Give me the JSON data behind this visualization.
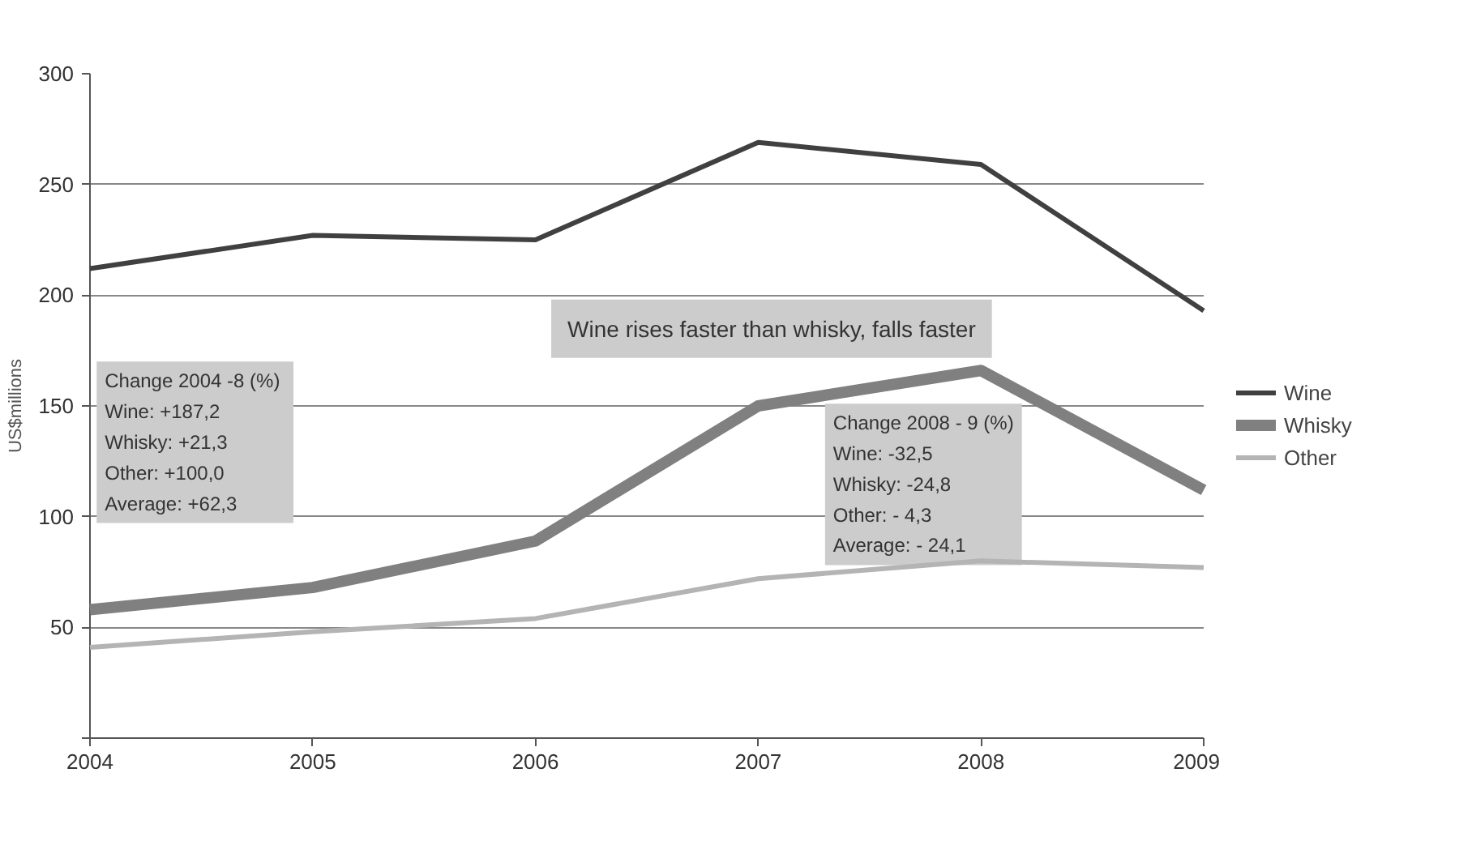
{
  "chart_data": {
    "type": "line",
    "ylabel": "US$millions",
    "x": [
      2004,
      2005,
      2006,
      2007,
      2008,
      2009
    ],
    "xlim": [
      2004,
      2009
    ],
    "xticks": [
      2004,
      2005,
      2006,
      2007,
      2008,
      2009
    ],
    "ylim": [
      0,
      300
    ],
    "yticks": [
      {
        "value": 0,
        "label": null
      },
      50,
      100,
      150,
      200,
      250,
      300
    ],
    "grid": "y",
    "legend": "right",
    "marker": "none",
    "line_style": "solid",
    "series": [
      {
        "name": "Wine",
        "color": "#404040",
        "values": [
          212,
          227,
          225,
          269,
          259,
          193
        ]
      },
      {
        "name": "Whisky",
        "color": "#808080",
        "values": [
          58,
          68,
          89,
          150,
          166,
          112
        ]
      },
      {
        "name": "Other",
        "color": "#b4b4b4",
        "values": [
          41,
          48,
          54,
          72,
          80,
          77
        ]
      }
    ],
    "annotations": [
      "Wine rises faster than whisky, falls faster",
      "Change 2004  -8 (%)\nWine: +187,2\nWhisky: +21,3\nOther: +100,0\nAverage: +62,3",
      "Change 2008 - 9 (%)\nWine:   -32,5\nWhisky:   -24,8\nOther:  - 4,3\nAverage:   - 24,1"
    ]
  }
}
